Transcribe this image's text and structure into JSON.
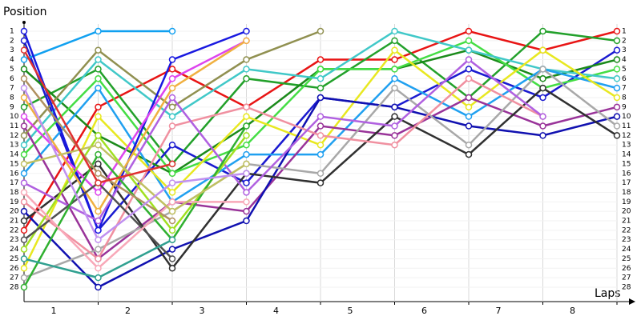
{
  "chart_data": {
    "type": "lap",
    "y_label": "Position",
    "x_label": "Laps",
    "lap_labels": [
      1,
      2,
      3,
      4,
      5,
      6,
      7,
      8
    ],
    "ylim": [
      28,
      1
    ],
    "yticks": [
      1,
      2,
      3,
      4,
      5,
      6,
      7,
      8,
      9,
      10,
      11,
      12,
      13,
      14,
      15,
      16,
      17,
      18,
      19,
      20,
      21,
      22,
      23,
      24,
      25,
      26,
      27,
      28
    ],
    "grid": true,
    "series": [
      {
        "color": "#e81414",
        "values": [
          22,
          9,
          5,
          9,
          4,
          4,
          1,
          3,
          1
        ]
      },
      {
        "color": "#22a02a",
        "values": [
          9,
          5,
          15,
          6,
          7,
          2,
          8,
          1,
          2
        ]
      },
      {
        "color": "#1a1ad0",
        "values": [
          2,
          22,
          13,
          17,
          8,
          9,
          5,
          8,
          3
        ]
      },
      {
        "color": "#1a8a1a",
        "values": [
          5,
          12,
          16,
          11,
          5,
          5,
          3,
          6,
          4
        ]
      },
      {
        "color": "#44dd44",
        "values": [
          14,
          6,
          16,
          13,
          5,
          5,
          2,
          7,
          5
        ]
      },
      {
        "color": "#40c8c8",
        "values": [
          13,
          4,
          10,
          5,
          6,
          1,
          3,
          5,
          6
        ]
      },
      {
        "color": "#20a0f0",
        "values": [
          16,
          7,
          19,
          14,
          14,
          6,
          10,
          5,
          7
        ]
      },
      {
        "color": "#e8e820",
        "values": [
          26,
          10,
          18,
          10,
          13,
          3,
          9,
          3,
          8
        ]
      },
      {
        "color": "#993399",
        "values": [
          11,
          25,
          19,
          20,
          11,
          12,
          8,
          11,
          9
        ]
      },
      {
        "color": "#1010b0",
        "values": [
          20,
          28,
          24,
          21,
          8,
          9,
          11,
          12,
          10
        ]
      },
      {
        "color": "#a8a8a8",
        "values": [
          27,
          24,
          20,
          15,
          16,
          7,
          13,
          5,
          11
        ]
      },
      {
        "color": "#303030",
        "values": [
          21,
          15,
          26,
          16,
          17,
          10,
          14,
          7,
          12
        ]
      },
      {
        "color": "#10a0f0",
        "values": [
          4,
          1,
          1,
          null,
          null,
          null,
          null,
          null,
          null
        ]
      },
      {
        "color": "#909050",
        "values": [
          12,
          3,
          9,
          4,
          1,
          null,
          null,
          null,
          null
        ]
      },
      {
        "color": "#1818e0",
        "values": [
          1,
          22,
          4,
          1,
          null,
          null,
          null,
          null,
          null
        ]
      },
      {
        "color": "#dd44ee",
        "values": [
          10,
          18,
          6,
          2,
          null,
          null,
          null,
          null,
          null
        ]
      },
      {
        "color": "#f0b040",
        "values": [
          8,
          20,
          7,
          2,
          null,
          null,
          null,
          null,
          null
        ]
      },
      {
        "color": "#f090a0",
        "values": [
          19,
          25,
          11,
          9,
          12,
          13,
          6,
          10,
          null
        ]
      },
      {
        "color": "#b060e0",
        "values": [
          17,
          21,
          8,
          18,
          10,
          11,
          4,
          10,
          null
        ]
      },
      {
        "color": "#a0e020",
        "values": [
          24,
          12,
          22,
          12,
          null,
          null,
          null,
          null,
          null
        ]
      },
      {
        "color": "#505050",
        "values": [
          23,
          17,
          25,
          null,
          null,
          null,
          null,
          null,
          null
        ]
      },
      {
        "color": "#30b030",
        "values": [
          28,
          14,
          23,
          11,
          null,
          null,
          null,
          null,
          null
        ]
      },
      {
        "color": "#f8a8b8",
        "values": [
          18,
          26,
          19,
          19,
          null,
          null,
          null,
          null,
          null
        ]
      },
      {
        "color": "#c0c060",
        "values": [
          15,
          13,
          20,
          15,
          null,
          null,
          null,
          null,
          null
        ]
      },
      {
        "color": "#30a090",
        "values": [
          25,
          27,
          23,
          null,
          null,
          null,
          null,
          null,
          null
        ]
      },
      {
        "color": "#b09060",
        "values": [
          6,
          16,
          21,
          null,
          null,
          null,
          null,
          null,
          null
        ]
      },
      {
        "color": "#e03030",
        "values": [
          3,
          17,
          15,
          null,
          null,
          null,
          null,
          null,
          null
        ]
      },
      {
        "color": "#c090f0",
        "values": [
          7,
          23,
          17,
          16,
          null,
          null,
          null,
          null,
          null
        ]
      }
    ]
  }
}
